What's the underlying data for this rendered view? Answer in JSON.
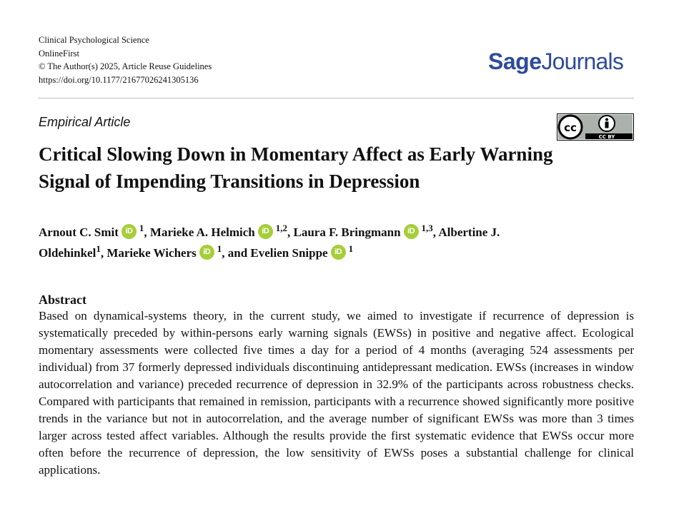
{
  "header": {
    "journal_name": "Clinical Psychological Science",
    "status": "OnlineFirst",
    "copyright": "© The Author(s) 2025, Article Reuse Guidelines",
    "doi": "https://doi.org/10.1177/21677026241305136",
    "logo_primary": "Sage",
    "logo_secondary": "Journals",
    "license": "CC BY"
  },
  "article": {
    "type": "Empirical Article",
    "title": "Critical Slowing Down in Momentary Affect as Early Warning Signal of Impending Transitions in Depression",
    "authors": [
      {
        "name": "Arnout C. Smit",
        "orcid": true,
        "aff": "1",
        "sep": ", "
      },
      {
        "name": "Marieke A. Helmich",
        "orcid": true,
        "aff": "1,2",
        "sep": ", "
      },
      {
        "name": "Laura F. Bringmann",
        "orcid": true,
        "aff": "1,3",
        "sep": ", "
      },
      {
        "name": "Albertine J. Oldehinkel",
        "orcid": false,
        "aff": "1",
        "sep": ", "
      },
      {
        "name": "Marieke Wichers",
        "orcid": true,
        "aff": "1",
        "sep": ", and "
      },
      {
        "name": "Evelien Snippe",
        "orcid": true,
        "aff": "1",
        "sep": ""
      }
    ],
    "orcid_label": "iD"
  },
  "abstract": {
    "heading": "Abstract",
    "text": "Based on dynamical-systems theory, in the current study, we aimed to investigate if recurrence of depression is systematically preceded by within-persons early warning signals (EWSs) in positive and negative affect. Ecological momentary assessments were collected five times a day for a period of 4 months (averaging 524 assessments per individual) from 37 formerly depressed individuals discontinuing antidepressant medication. EWSs (increases in window autocorrelation and variance) preceded recurrence of depression in 32.9% of the participants across robustness checks. Compared with participants that remained in remission, participants with a recurrence showed significantly more positive trends in the variance but not in autocorrelation, and the average number of significant EWSs was more than 3 times larger across tested affect variables. Although the results provide the first systematic evidence that EWSs occur more often before the recurrence of depression, the low sensitivity of EWSs poses a substantial challenge for clinical applications."
  },
  "colors": {
    "logo": "#2e4b9b",
    "orcid": "#a6ce39",
    "rule": "#bdbdbd"
  },
  "icons": {
    "orcid": "orcid-icon",
    "license": "cc-by-icon"
  }
}
